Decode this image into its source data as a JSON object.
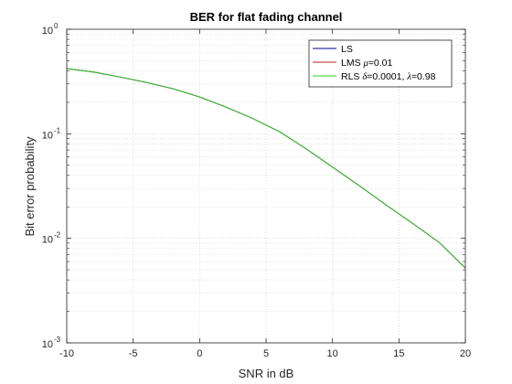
{
  "chart_data": {
    "type": "line",
    "title": "BER for flat fading channel",
    "xlabel": "SNR in dB",
    "ylabel": "Bit error probability",
    "x_scale": "linear",
    "y_scale": "log",
    "xlim": [
      -10,
      20
    ],
    "ylim": [
      0.001,
      1
    ],
    "x_ticks": [
      -10,
      -5,
      0,
      5,
      10,
      15,
      20
    ],
    "y_ticks": [
      {
        "value": 0.001,
        "base": "10",
        "exponent": "-3"
      },
      {
        "value": 0.01,
        "base": "10",
        "exponent": "-2"
      },
      {
        "value": 0.1,
        "base": "10",
        "exponent": "-1"
      },
      {
        "value": 1,
        "base": "10",
        "exponent": "0"
      }
    ],
    "grid": true,
    "minor_grid": true,
    "legend_position": "top-right",
    "legend": [
      {
        "parts": [
          {
            "text": "LS"
          }
        ],
        "color": "#00008b"
      },
      {
        "parts": [
          {
            "text": "LMS "
          },
          {
            "text": "μ",
            "greek": true
          },
          {
            "text": "=0.01"
          }
        ],
        "color": "#b22222"
      },
      {
        "parts": [
          {
            "text": "RLS "
          },
          {
            "text": "δ",
            "greek": true
          },
          {
            "text": "=0.0001, "
          },
          {
            "text": "λ",
            "greek": true
          },
          {
            "text": "=0.98"
          }
        ],
        "color": "#22cc22"
      }
    ],
    "series": [
      {
        "color": "#00008b",
        "x": [
          -10,
          -8,
          -6,
          -4,
          -2,
          0,
          2,
          4,
          6,
          8,
          10,
          12,
          14,
          16,
          18,
          20
        ],
        "y": [
          0.42,
          0.39,
          0.35,
          0.31,
          0.27,
          0.225,
          0.18,
          0.14,
          0.105,
          0.072,
          0.048,
          0.032,
          0.021,
          0.014,
          0.0092,
          0.0052
        ]
      },
      {
        "color": "#b22222",
        "x": [
          -10,
          -8,
          -6,
          -4,
          -2,
          0,
          2,
          4,
          6,
          8,
          10,
          12,
          14,
          16,
          18,
          20
        ],
        "y": [
          0.42,
          0.39,
          0.35,
          0.31,
          0.27,
          0.225,
          0.18,
          0.14,
          0.105,
          0.072,
          0.048,
          0.032,
          0.021,
          0.014,
          0.0092,
          0.0052
        ]
      },
      {
        "color": "#22cc22",
        "x": [
          -10,
          -8,
          -6,
          -4,
          -2,
          0,
          2,
          4,
          6,
          8,
          10,
          12,
          14,
          16,
          18,
          20
        ],
        "y": [
          0.42,
          0.39,
          0.35,
          0.31,
          0.27,
          0.225,
          0.18,
          0.14,
          0.105,
          0.072,
          0.048,
          0.032,
          0.021,
          0.014,
          0.0092,
          0.0052
        ]
      }
    ]
  }
}
